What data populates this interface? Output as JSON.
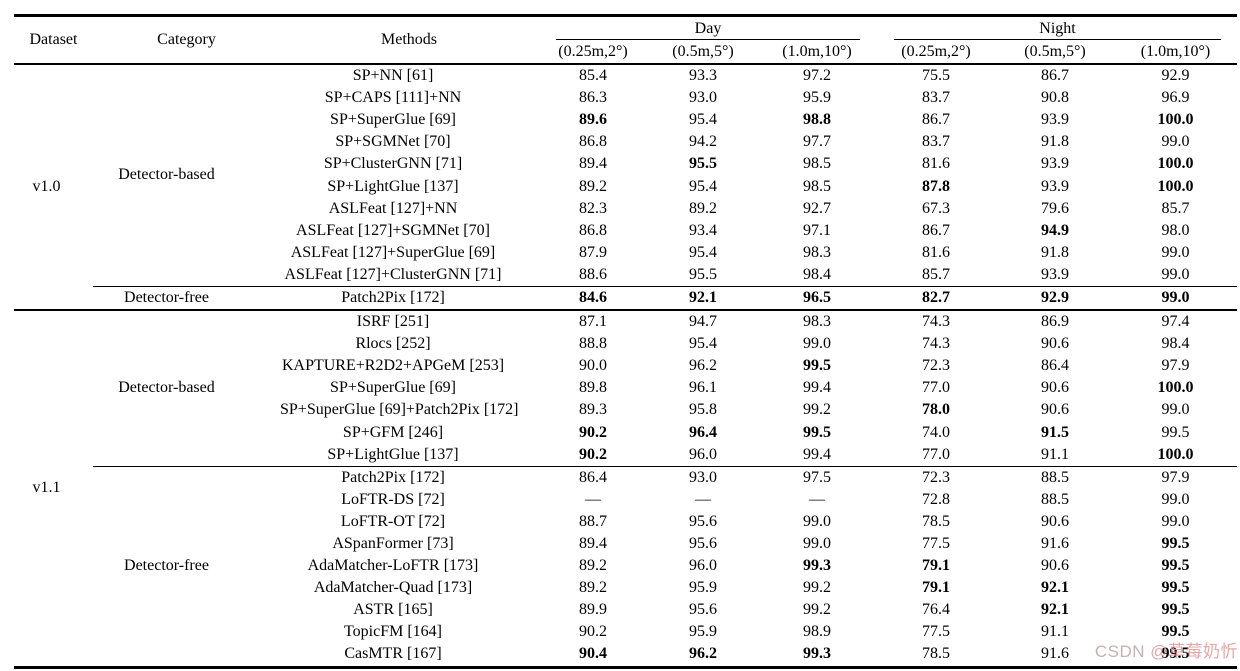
{
  "table": {
    "headers": {
      "dataset": "Dataset",
      "category": "Category",
      "methods": "Methods",
      "day": "Day",
      "night": "Night",
      "thresholds": [
        "(0.25m,2°)",
        "(0.5m,5°)",
        "(1.0m,10°)",
        "(0.25m,2°)",
        "(0.5m,5°)",
        "(1.0m,10°)"
      ]
    },
    "groups": [
      {
        "dataset": "v1.0",
        "categories": [
          {
            "category": "Detector-based",
            "rows": [
              {
                "method": "SP+NN [61]",
                "values": [
                  "85.4",
                  "93.3",
                  "97.2",
                  "75.5",
                  "86.7",
                  "92.9"
                ],
                "bold": [
                  0,
                  0,
                  0,
                  0,
                  0,
                  0
                ]
              },
              {
                "method": "SP+CAPS [111]+NN",
                "values": [
                  "86.3",
                  "93.0",
                  "95.9",
                  "83.7",
                  "90.8",
                  "96.9"
                ],
                "bold": [
                  0,
                  0,
                  0,
                  0,
                  0,
                  0
                ]
              },
              {
                "method": "SP+SuperGlue [69]",
                "values": [
                  "89.6",
                  "95.4",
                  "98.8",
                  "86.7",
                  "93.9",
                  "100.0"
                ],
                "bold": [
                  1,
                  0,
                  1,
                  0,
                  0,
                  1
                ]
              },
              {
                "method": "SP+SGMNet [70]",
                "values": [
                  "86.8",
                  "94.2",
                  "97.7",
                  "83.7",
                  "91.8",
                  "99.0"
                ],
                "bold": [
                  0,
                  0,
                  0,
                  0,
                  0,
                  0
                ]
              },
              {
                "method": "SP+ClusterGNN [71]",
                "values": [
                  "89.4",
                  "95.5",
                  "98.5",
                  "81.6",
                  "93.9",
                  "100.0"
                ],
                "bold": [
                  0,
                  1,
                  0,
                  0,
                  0,
                  1
                ]
              },
              {
                "method": "SP+LightGlue [137]",
                "values": [
                  "89.2",
                  "95.4",
                  "98.5",
                  "87.8",
                  "93.9",
                  "100.0"
                ],
                "bold": [
                  0,
                  0,
                  0,
                  1,
                  0,
                  1
                ]
              },
              {
                "method": "ASLFeat [127]+NN",
                "values": [
                  "82.3",
                  "89.2",
                  "92.7",
                  "67.3",
                  "79.6",
                  "85.7"
                ],
                "bold": [
                  0,
                  0,
                  0,
                  0,
                  0,
                  0
                ]
              },
              {
                "method": "ASLFeat [127]+SGMNet [70]",
                "values": [
                  "86.8",
                  "93.4",
                  "97.1",
                  "86.7",
                  "94.9",
                  "98.0"
                ],
                "bold": [
                  0,
                  0,
                  0,
                  0,
                  1,
                  0
                ]
              },
              {
                "method": "ASLFeat [127]+SuperGlue [69]",
                "values": [
                  "87.9",
                  "95.4",
                  "98.3",
                  "81.6",
                  "91.8",
                  "99.0"
                ],
                "bold": [
                  0,
                  0,
                  0,
                  0,
                  0,
                  0
                ]
              },
              {
                "method": "ASLFeat [127]+ClusterGNN [71]",
                "values": [
                  "88.6",
                  "95.5",
                  "98.4",
                  "85.7",
                  "93.9",
                  "99.0"
                ],
                "bold": [
                  0,
                  0,
                  0,
                  0,
                  0,
                  0
                ]
              }
            ]
          },
          {
            "category": "Detector-free",
            "rows": [
              {
                "method": "Patch2Pix [172]",
                "values": [
                  "84.6",
                  "92.1",
                  "96.5",
                  "82.7",
                  "92.9",
                  "99.0"
                ],
                "bold": [
                  1,
                  1,
                  1,
                  1,
                  1,
                  1
                ]
              }
            ]
          }
        ]
      },
      {
        "dataset": "v1.1",
        "categories": [
          {
            "category": "Detector-based",
            "rows": [
              {
                "method": "ISRF [251]",
                "values": [
                  "87.1",
                  "94.7",
                  "98.3",
                  "74.3",
                  "86.9",
                  "97.4"
                ],
                "bold": [
                  0,
                  0,
                  0,
                  0,
                  0,
                  0
                ]
              },
              {
                "method": "Rlocs [252]",
                "values": [
                  "88.8",
                  "95.4",
                  "99.0",
                  "74.3",
                  "90.6",
                  "98.4"
                ],
                "bold": [
                  0,
                  0,
                  0,
                  0,
                  0,
                  0
                ]
              },
              {
                "method": "KAPTURE+R2D2+APGeM [253]",
                "values": [
                  "90.0",
                  "96.2",
                  "99.5",
                  "72.3",
                  "86.4",
                  "97.9"
                ],
                "bold": [
                  0,
                  0,
                  1,
                  0,
                  0,
                  0
                ]
              },
              {
                "method": "SP+SuperGlue [69]",
                "values": [
                  "89.8",
                  "96.1",
                  "99.4",
                  "77.0",
                  "90.6",
                  "100.0"
                ],
                "bold": [
                  0,
                  0,
                  0,
                  0,
                  0,
                  1
                ]
              },
              {
                "method": "SP+SuperGlue [69]+Patch2Pix [172]",
                "values": [
                  "89.3",
                  "95.8",
                  "99.2",
                  "78.0",
                  "90.6",
                  "99.0"
                ],
                "bold": [
                  0,
                  0,
                  0,
                  1,
                  0,
                  0
                ]
              },
              {
                "method": "SP+GFM [246]",
                "values": [
                  "90.2",
                  "96.4",
                  "99.5",
                  "74.0",
                  "91.5",
                  "99.5"
                ],
                "bold": [
                  1,
                  1,
                  1,
                  0,
                  1,
                  0
                ]
              },
              {
                "method": "SP+LightGlue [137]",
                "values": [
                  "90.2",
                  "96.0",
                  "99.4",
                  "77.0",
                  "91.1",
                  "100.0"
                ],
                "bold": [
                  1,
                  0,
                  0,
                  0,
                  0,
                  1
                ]
              }
            ]
          },
          {
            "category": "Detector-free",
            "rows": [
              {
                "method": "Patch2Pix [172]",
                "values": [
                  "86.4",
                  "93.0",
                  "97.5",
                  "72.3",
                  "88.5",
                  "97.9"
                ],
                "bold": [
                  0,
                  0,
                  0,
                  0,
                  0,
                  0
                ]
              },
              {
                "method": "LoFTR-DS [72]",
                "values": [
                  "—",
                  "—",
                  "—",
                  "72.8",
                  "88.5",
                  "99.0"
                ],
                "bold": [
                  0,
                  0,
                  0,
                  0,
                  0,
                  0
                ]
              },
              {
                "method": "LoFTR-OT [72]",
                "values": [
                  "88.7",
                  "95.6",
                  "99.0",
                  "78.5",
                  "90.6",
                  "99.0"
                ],
                "bold": [
                  0,
                  0,
                  0,
                  0,
                  0,
                  0
                ]
              },
              {
                "method": "ASpanFormer [73]",
                "values": [
                  "89.4",
                  "95.6",
                  "99.0",
                  "77.5",
                  "91.6",
                  "99.5"
                ],
                "bold": [
                  0,
                  0,
                  0,
                  0,
                  0,
                  1
                ]
              },
              {
                "method": "AdaMatcher-LoFTR [173]",
                "values": [
                  "89.2",
                  "96.0",
                  "99.3",
                  "79.1",
                  "90.6",
                  "99.5"
                ],
                "bold": [
                  0,
                  0,
                  1,
                  1,
                  0,
                  1
                ]
              },
              {
                "method": "AdaMatcher-Quad [173]",
                "values": [
                  "89.2",
                  "95.9",
                  "99.2",
                  "79.1",
                  "92.1",
                  "99.5"
                ],
                "bold": [
                  0,
                  0,
                  0,
                  1,
                  1,
                  1
                ]
              },
              {
                "method": "ASTR [165]",
                "values": [
                  "89.9",
                  "95.6",
                  "99.2",
                  "76.4",
                  "92.1",
                  "99.5"
                ],
                "bold": [
                  0,
                  0,
                  0,
                  0,
                  1,
                  1
                ]
              },
              {
                "method": "TopicFM [164]",
                "values": [
                  "90.2",
                  "95.9",
                  "98.9",
                  "77.5",
                  "91.1",
                  "99.5"
                ],
                "bold": [
                  0,
                  0,
                  0,
                  0,
                  0,
                  1
                ]
              },
              {
                "method": "CasMTR [167]",
                "values": [
                  "90.4",
                  "96.2",
                  "99.3",
                  "78.5",
                  "91.6",
                  "99.5"
                ],
                "bold": [
                  1,
                  1,
                  1,
                  0,
                  0,
                  1
                ]
              }
            ]
          }
        ]
      }
    ]
  },
  "watermark": {
    "prefix": "CSDN ",
    "handle": "@草莓奶忻"
  }
}
